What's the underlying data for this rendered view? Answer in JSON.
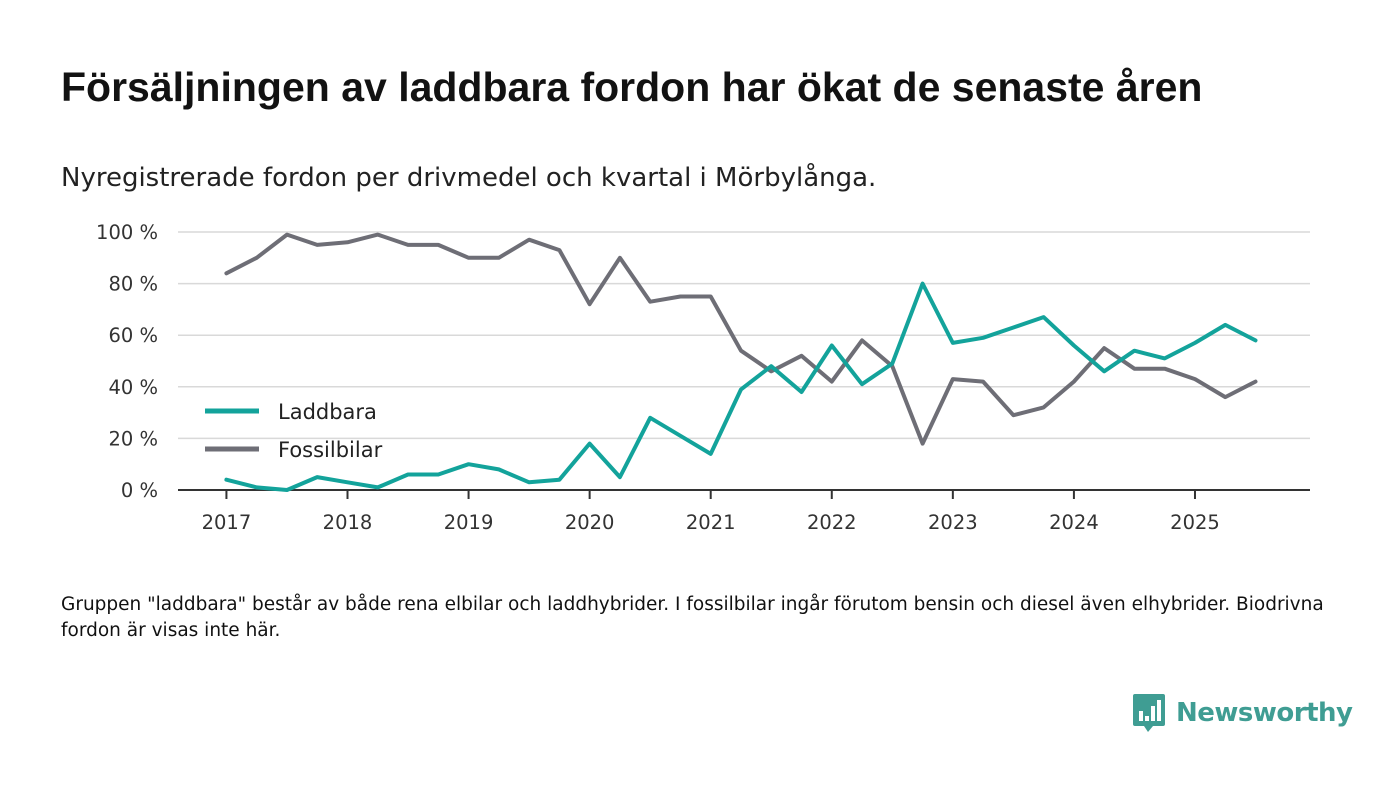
{
  "title": "Försäljningen av laddbara fordon har ökat de senaste åren",
  "subtitle": "Nyregistrerade fordon per drivmedel och kvartal i Mörbylånga.",
  "note": "Gruppen \"laddbara\" består av både rena elbilar och laddhybrider. I fossilbilar ingår förutom bensin och diesel även elhybrider. Biodrivna fordon är visas inte här.",
  "brand": {
    "name": "Newsworthy",
    "icon": "newsworthy-logo-icon",
    "color": "#3f9d93"
  },
  "chart_data": {
    "type": "line",
    "title": "Försäljningen av laddbara fordon har ökat de senaste åren",
    "xlabel": "",
    "ylabel": "",
    "ylim": [
      0,
      100
    ],
    "yticks": [
      0,
      20,
      40,
      60,
      80,
      100
    ],
    "ytick_labels": [
      "0 %",
      "20 %",
      "40 %",
      "60 %",
      "80 %",
      "100 %"
    ],
    "xlim": [
      2016.6,
      2025.95
    ],
    "xticks": [
      2017,
      2018,
      2019,
      2020,
      2021,
      2022,
      2023,
      2024,
      2025
    ],
    "xtick_labels": [
      "2017",
      "2018",
      "2019",
      "2020",
      "2021",
      "2022",
      "2023",
      "2024",
      "2025"
    ],
    "grid": true,
    "legend_position": "left",
    "x": [
      2017.0,
      2017.25,
      2017.5,
      2017.75,
      2018.0,
      2018.25,
      2018.5,
      2018.75,
      2019.0,
      2019.25,
      2019.5,
      2019.75,
      2020.0,
      2020.25,
      2020.5,
      2020.75,
      2021.0,
      2021.25,
      2021.5,
      2021.75,
      2022.0,
      2022.25,
      2022.5,
      2022.75,
      2023.0,
      2023.25,
      2023.5,
      2023.75,
      2024.0,
      2024.25,
      2024.5,
      2024.75,
      2025.0,
      2025.25,
      2025.5
    ],
    "series": [
      {
        "name": "Laddbara",
        "color": "#13a39b",
        "values": [
          4,
          1,
          0,
          5,
          3,
          1,
          6,
          6,
          10,
          8,
          3,
          4,
          18,
          5,
          28,
          21,
          14,
          39,
          48,
          38,
          56,
          41,
          49,
          80,
          57,
          59,
          63,
          67,
          56,
          46,
          54,
          51,
          57,
          64,
          58
        ]
      },
      {
        "name": "Fossilbilar",
        "color": "#6e6e76",
        "values": [
          84,
          90,
          99,
          95,
          96,
          99,
          95,
          95,
          90,
          90,
          97,
          93,
          72,
          90,
          73,
          75,
          75,
          54,
          46,
          52,
          42,
          58,
          48,
          18,
          43,
          42,
          29,
          32,
          42,
          55,
          47,
          47,
          43,
          36,
          42
        ]
      }
    ]
  }
}
